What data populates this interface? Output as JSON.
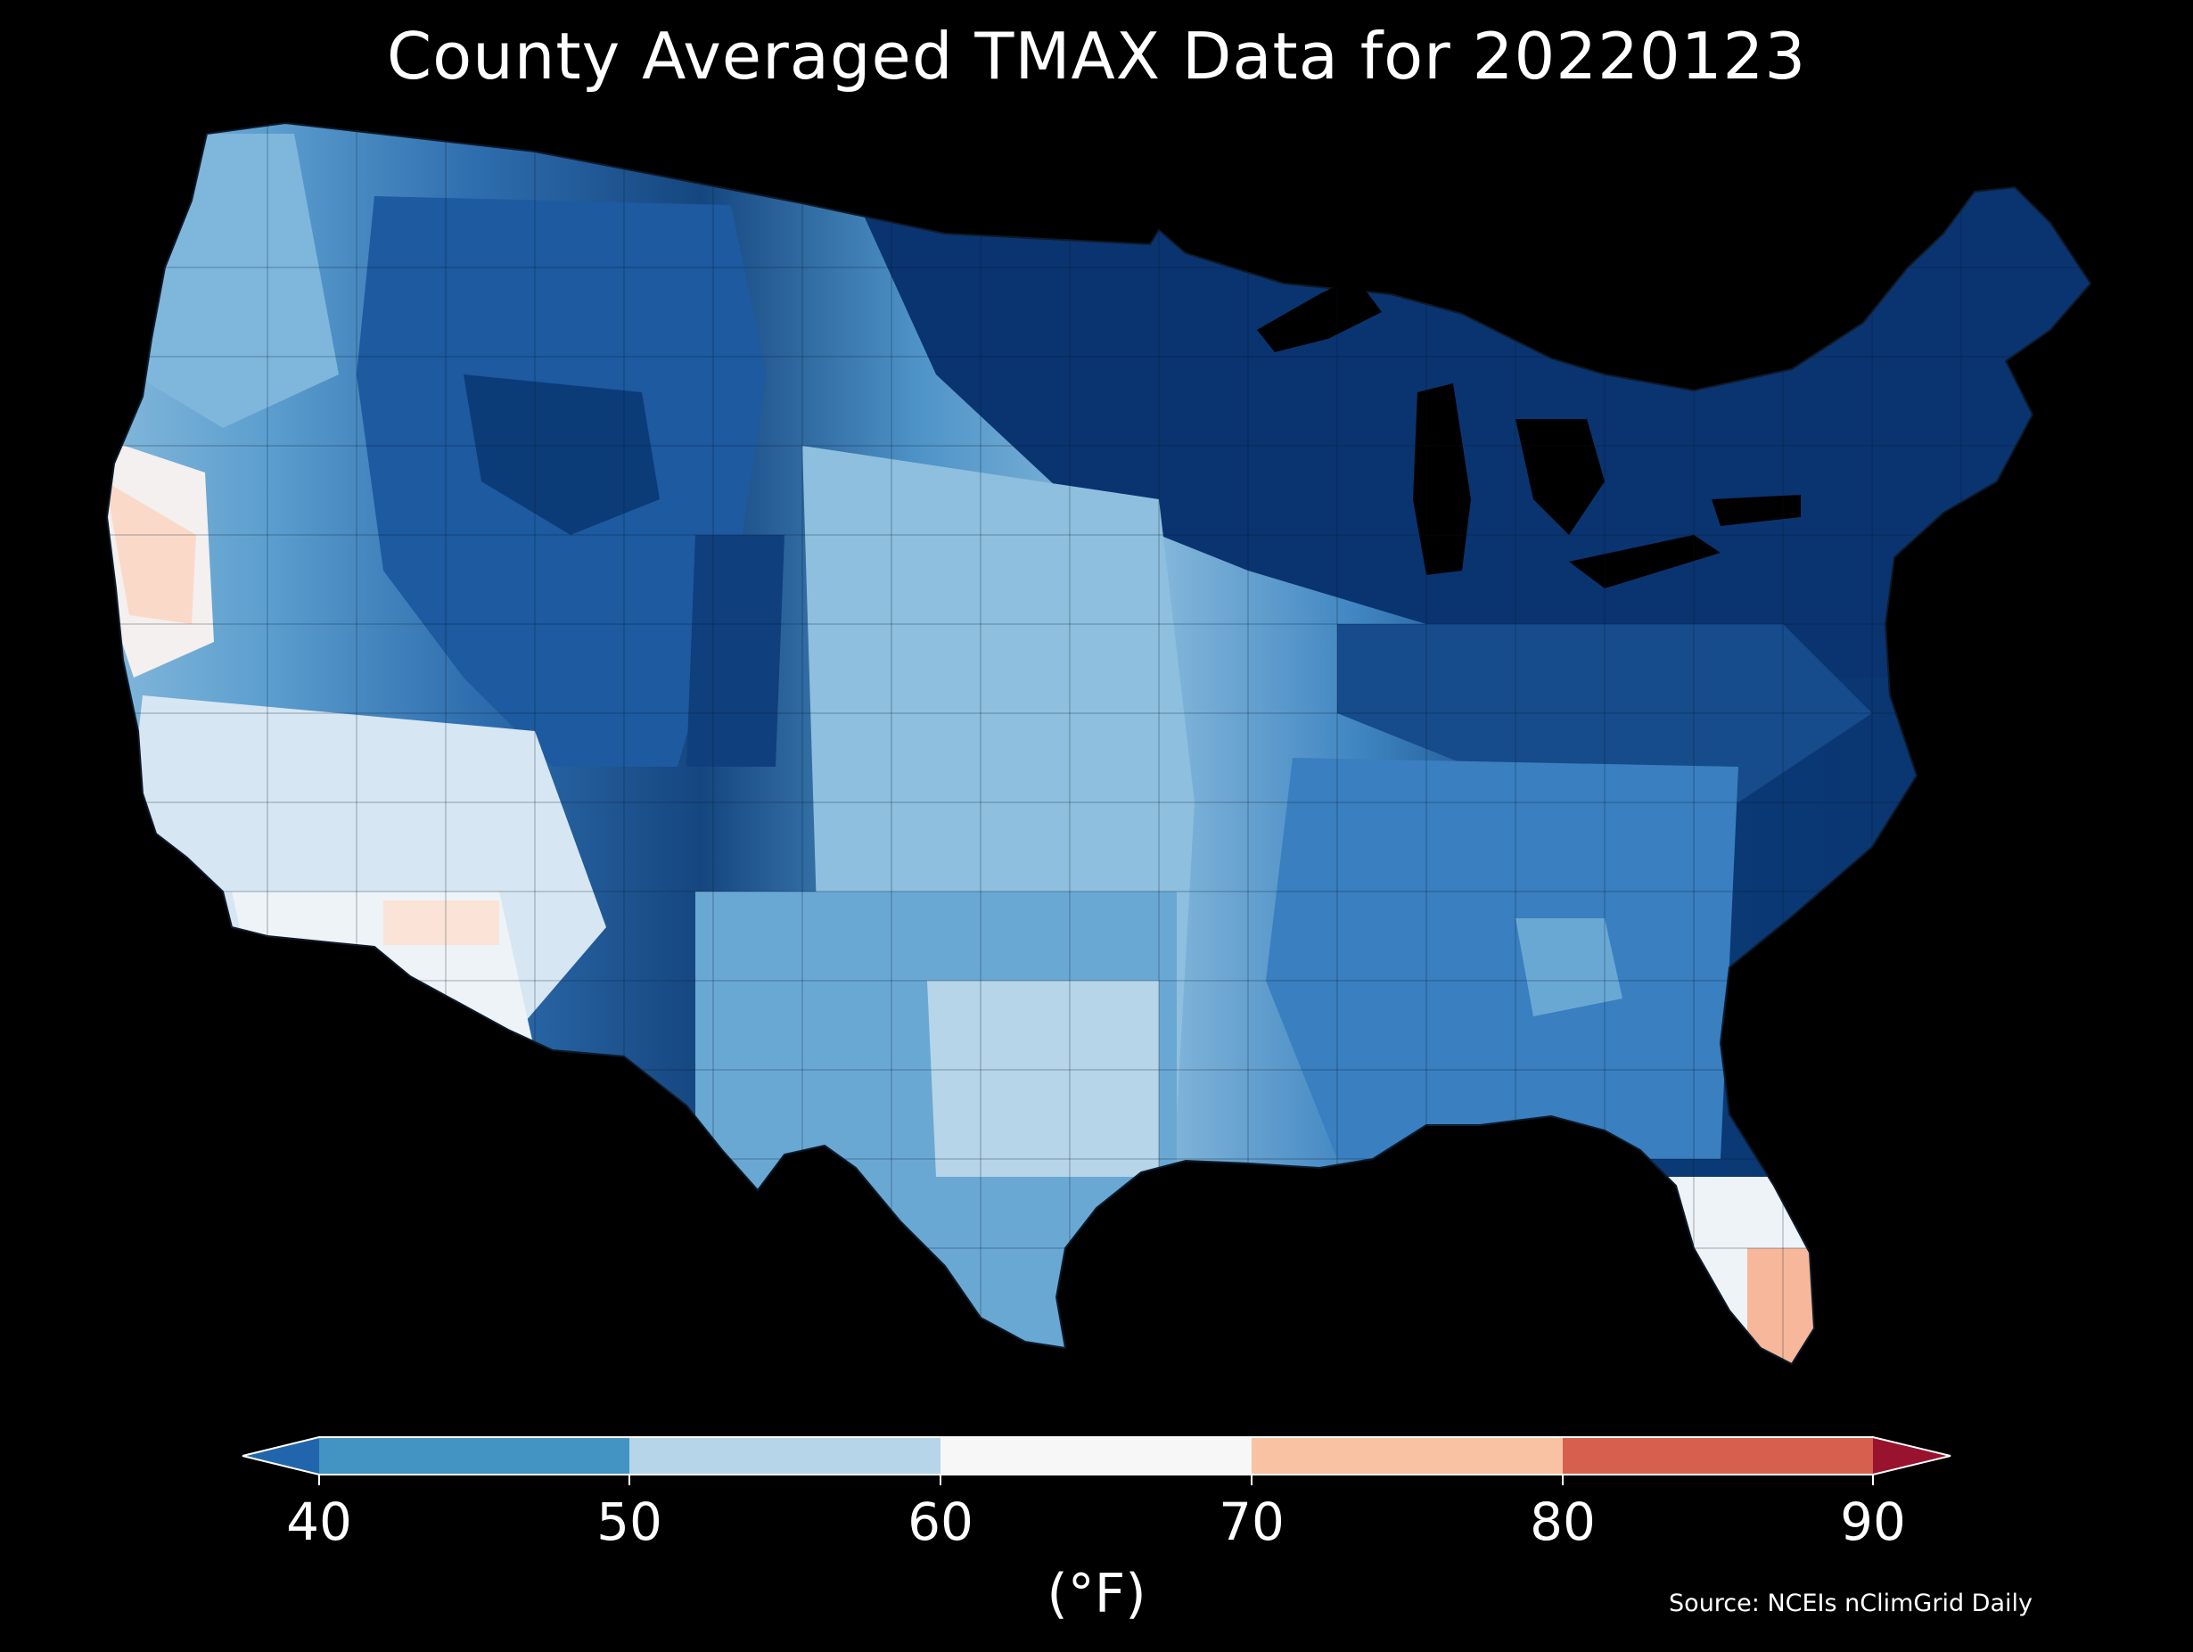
{
  "title": "County Averaged TMAX Data for 20220123",
  "source": "Source: NCEIs nClimGrid Daily",
  "colorbar": {
    "unit": "(°F)",
    "ticks": [
      "40",
      "50",
      "60",
      "70",
      "80",
      "90"
    ],
    "bins": [
      {
        "range": "<40",
        "color": "#2166ac"
      },
      {
        "range": "40-50",
        "color": "#4393c3"
      },
      {
        "range": "50-60",
        "color": "#b6d5e8"
      },
      {
        "range": "60-70",
        "color": "#f7f7f7"
      },
      {
        "range": "70-80",
        "color": "#f9c2a3"
      },
      {
        "range": "80-90",
        "color": "#d6604d"
      },
      {
        "range": ">90",
        "color": "#99122e"
      }
    ]
  },
  "regions": [
    {
      "name": "new-england-north",
      "bin": "<40",
      "color": "#08306b"
    },
    {
      "name": "great-lakes",
      "bin": "<40",
      "color": "#0b3c78"
    },
    {
      "name": "northern-plains",
      "bin": "<40",
      "color": "#0a3470"
    },
    {
      "name": "mid-atlantic",
      "bin": "<40",
      "color": "#1b5596"
    },
    {
      "name": "ohio-valley",
      "bin": "<40",
      "color": "#164c8c"
    },
    {
      "name": "rockies",
      "bin": "<40",
      "color": "#1d5aa0"
    },
    {
      "name": "central-plains",
      "bin": "50-60",
      "color": "#8ebfdf"
    },
    {
      "name": "southeast",
      "bin": "40-50",
      "color": "#3a7fc0"
    },
    {
      "name": "texas",
      "bin": "40-50",
      "color": "#6aa8d4"
    },
    {
      "name": "pacific-northwest",
      "bin": "50-60",
      "color": "#7fb6dc"
    },
    {
      "name": "southwest",
      "bin": "60-70",
      "color": "#e4eef6"
    },
    {
      "name": "california-coast",
      "bin": "70-80",
      "color": "#fbe0d2"
    },
    {
      "name": "south-florida",
      "bin": "70-80",
      "color": "#f6b79a"
    }
  ]
}
